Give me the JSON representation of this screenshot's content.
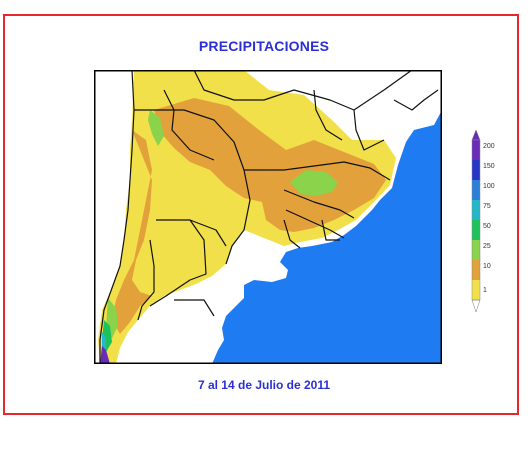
{
  "title": "PRECIPITACIONES",
  "date_label": "7 al 14 de Julio de 2011",
  "colors": {
    "frame": "#e8262b",
    "title": "#2a30d6",
    "ocean": "#1f7bf2",
    "no_data": "#ffffff",
    "border_lines": "#111111"
  },
  "legend": {
    "ticks": [
      "200",
      "150",
      "100",
      "75",
      "50",
      "25",
      "10",
      "1"
    ],
    "colors": [
      "#6a2bb8",
      "#2836c8",
      "#2a7fd8",
      "#22b8c9",
      "#1ec25a",
      "#8ad34a",
      "#e3a13b",
      "#f1e049"
    ]
  }
}
